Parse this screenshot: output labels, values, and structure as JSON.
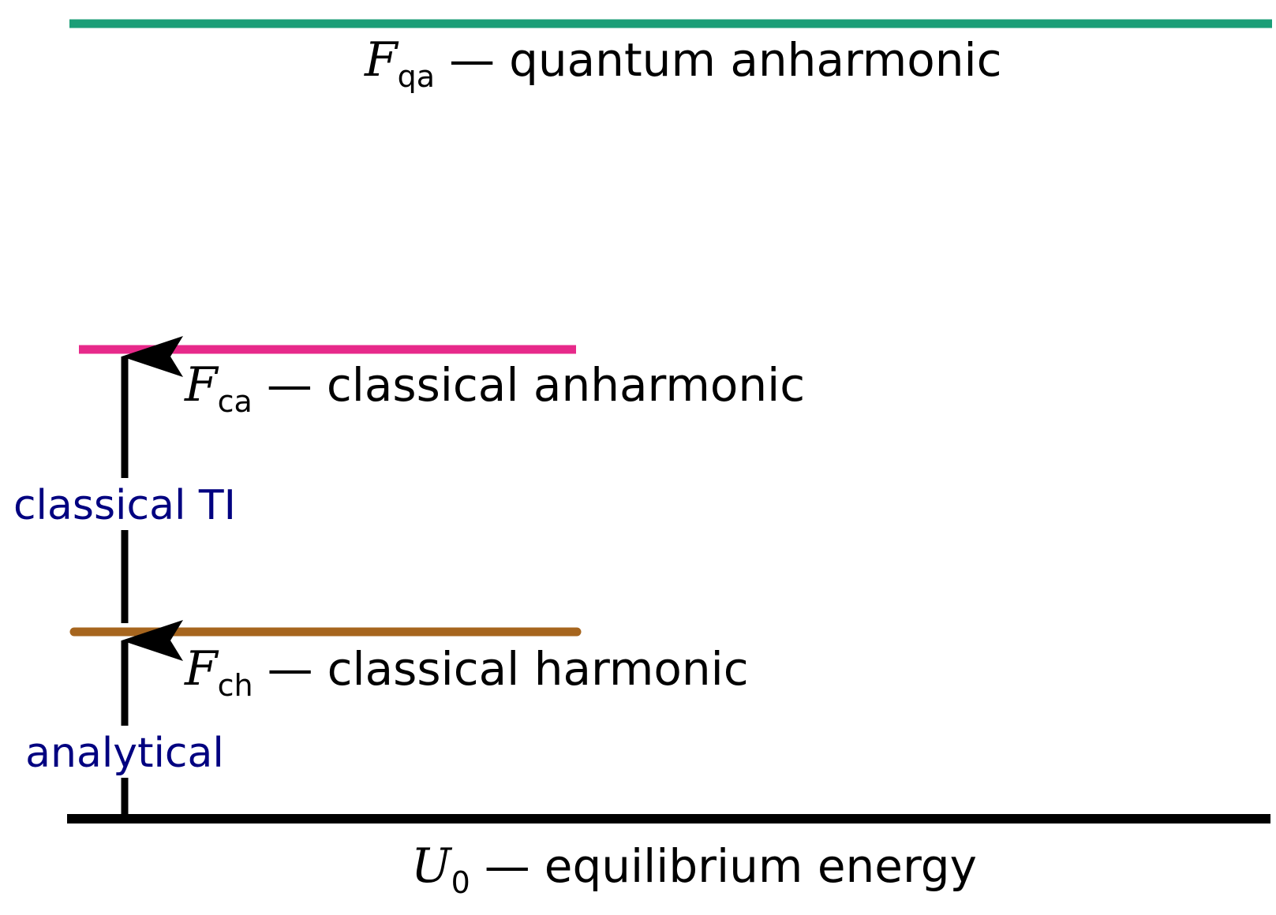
{
  "levels": {
    "quantum_anharmonic": {
      "symbol": "F",
      "subscript": "qa",
      "dash": "—",
      "label": "quantum anharmonic",
      "color": "#1b9e77"
    },
    "classical_anharmonic": {
      "symbol": "F",
      "subscript": "ca",
      "dash": "—",
      "label": "classical anharmonic",
      "color": "#e7298a"
    },
    "classical_harmonic": {
      "symbol": "F",
      "subscript": "ch",
      "dash": "—",
      "label": "classical harmonic",
      "color": "#a6651e"
    },
    "equilibrium": {
      "symbol": "U",
      "subscript": "0",
      "dash": "—",
      "label": "equilibrium energy",
      "color": "#000000"
    }
  },
  "steps": {
    "classical_ti": {
      "label": "classical TI",
      "color": "#000080"
    },
    "analytical": {
      "label": "analytical",
      "color": "#000080"
    }
  },
  "arrow_color": "#000000"
}
